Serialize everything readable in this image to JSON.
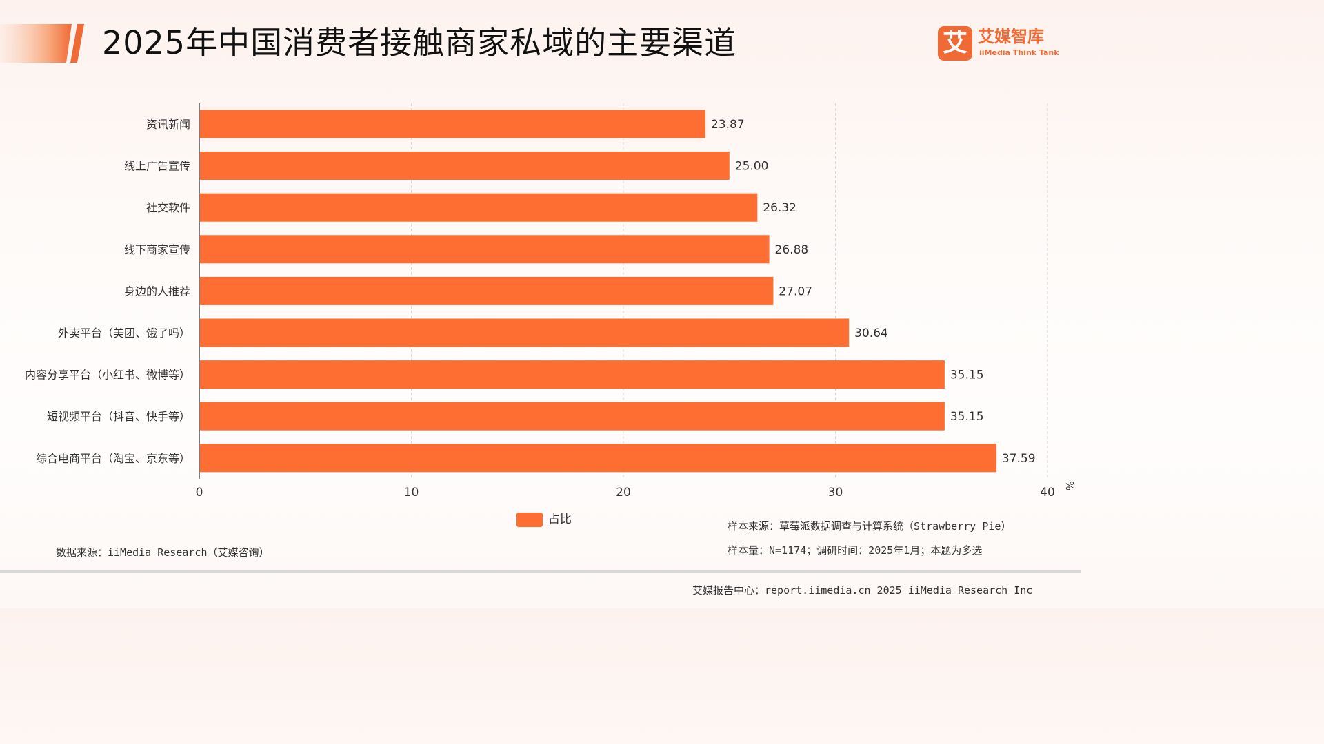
{
  "header": {
    "title": "2025年中国消费者接触商家私域的主要渠道"
  },
  "logo": {
    "mark": "艾",
    "name_cn": "艾媒智库",
    "name_en": "iiMedia Think Tank"
  },
  "colors": {
    "bar": "#fe6d31",
    "accent": "#f06a36",
    "grid": "#d9d9d9"
  },
  "chart_data": {
    "type": "bar",
    "orientation": "horizontal",
    "categories": [
      "资讯新闻",
      "线上广告宣传",
      "社交软件",
      "线下商家宣传",
      "身边的人推荐",
      "外卖平台（美团、饿了吗）",
      "内容分享平台（小红书、微博等）",
      "短视频平台（抖音、快手等）",
      "综合电商平台（淘宝、京东等）"
    ],
    "series": [
      {
        "name": "占比",
        "values": [
          23.87,
          25.0,
          26.32,
          26.88,
          27.07,
          30.64,
          35.15,
          35.15,
          37.59
        ]
      }
    ],
    "value_labels": [
      "23.87",
      "25.00",
      "26.32",
      "26.88",
      "27.07",
      "30.64",
      "35.15",
      "35.15",
      "37.59"
    ],
    "xlim": [
      0,
      40
    ],
    "xticks": [
      "0",
      "10",
      "20",
      "30",
      "40"
    ],
    "xunit": "%",
    "grid": "vertical-dashed",
    "legend_position": "bottom"
  },
  "notes": {
    "sample_source": "样本来源：草莓派数据调查与计算系统（Strawberry Pie）",
    "sample_size": "样本量：N=1174；调研时间：2025年1月；本题为多选",
    "data_source": "数据来源：iiMedia Research（艾媒咨询）"
  },
  "footer": {
    "text": "艾媒报告中心：report.iimedia.cn   2025 iiMedia Research Inc"
  }
}
